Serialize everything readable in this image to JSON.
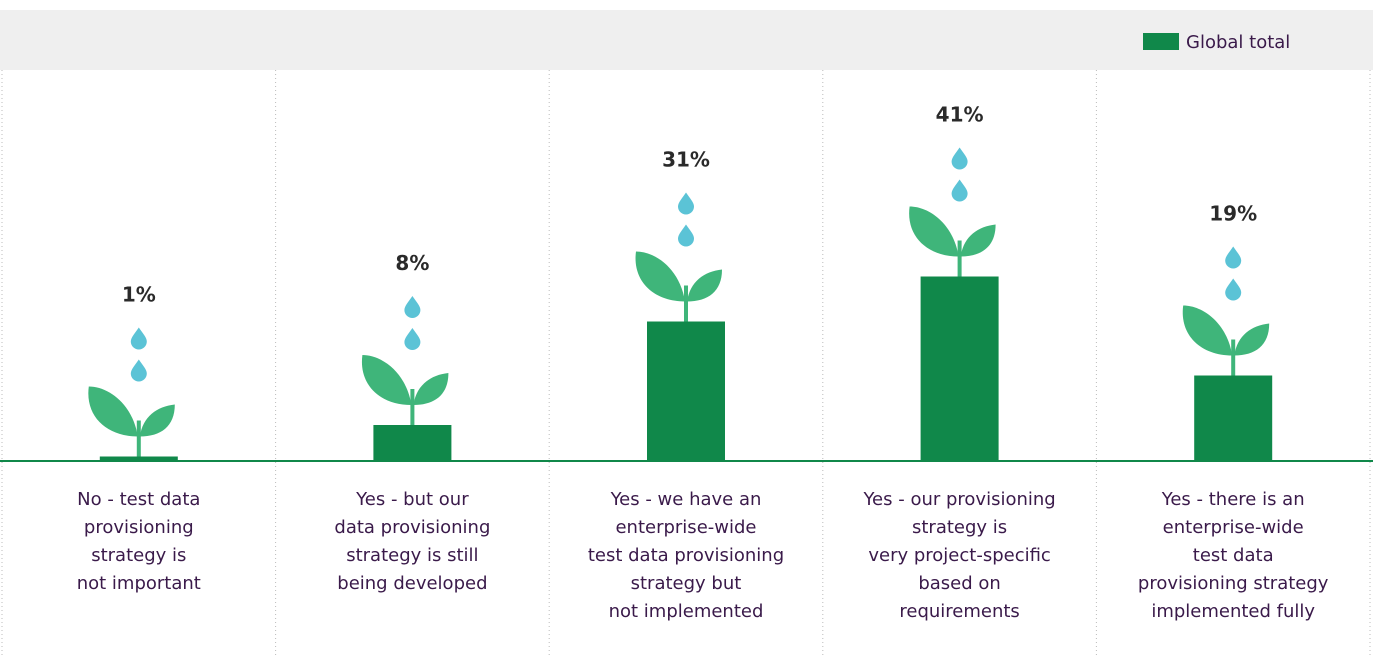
{
  "chart_data": {
    "type": "bar",
    "categories": [
      "No - test data\nprovisioning\nstrategy is\nnot important",
      "Yes - but our\ndata provisioning\nstrategy is still\nbeing developed",
      "Yes - we have an\nenterprise-wide\ntest data provisioning\nstrategy but\nnot implemented",
      "Yes - our provisioning\nstrategy is\nvery project-specific\nbased on\nrequirements",
      "Yes - there is an\nenterprise-wide\ntest data\nprovisioning strategy\nimplemented fully"
    ],
    "series": [
      {
        "name": "Global total",
        "color": "#10884a",
        "values": [
          1,
          8,
          31,
          41,
          19
        ],
        "value_labels": [
          "1%",
          "8%",
          "31%",
          "41%",
          "19%"
        ]
      }
    ]
  }
}
